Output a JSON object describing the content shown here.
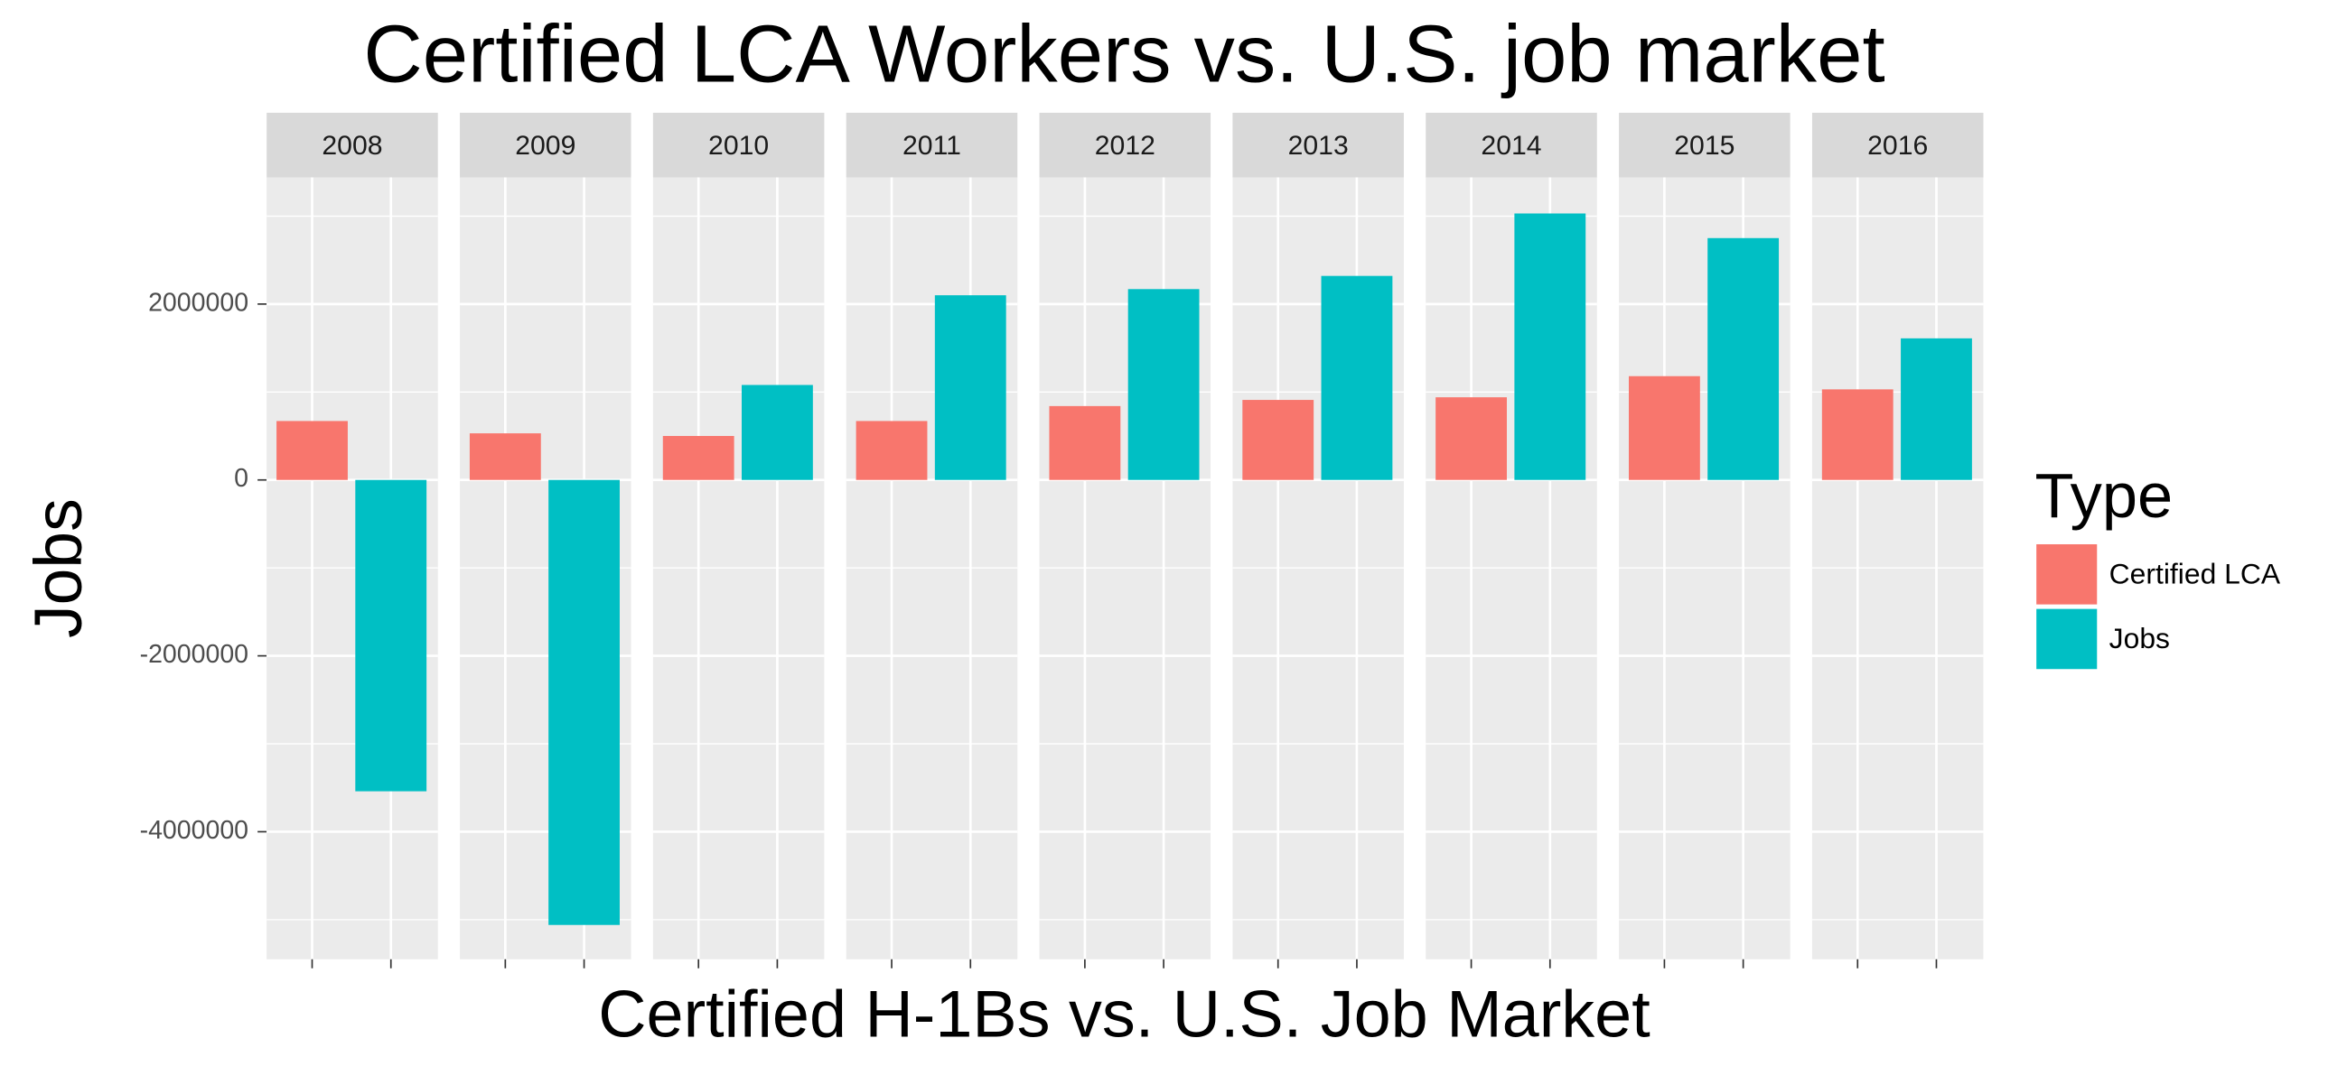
{
  "chart_data": {
    "type": "bar",
    "title": "Certified LCA Workers vs. U.S. job market",
    "x_label": "Certified H-1Bs vs. U.S. Job Market",
    "y_label": "Jobs",
    "legend_title": "Type",
    "categories": [
      "2008",
      "2009",
      "2010",
      "2011",
      "2012",
      "2013",
      "2014",
      "2015",
      "2016"
    ],
    "series": [
      {
        "name": "Certified LCA",
        "color": "#f8766d",
        "values": [
          670000,
          530000,
          500000,
          670000,
          840000,
          910000,
          940000,
          1180000,
          1030000
        ]
      },
      {
        "name": "Jobs",
        "color": "#00bfc4",
        "values": [
          -3540000,
          -5060000,
          1080000,
          2100000,
          2170000,
          2320000,
          3030000,
          2750000,
          1610000
        ]
      }
    ],
    "ylim": [
      -5450000,
      3440000
    ],
    "yticks": [
      -4000000,
      -2000000,
      0,
      2000000
    ],
    "grid": true
  }
}
